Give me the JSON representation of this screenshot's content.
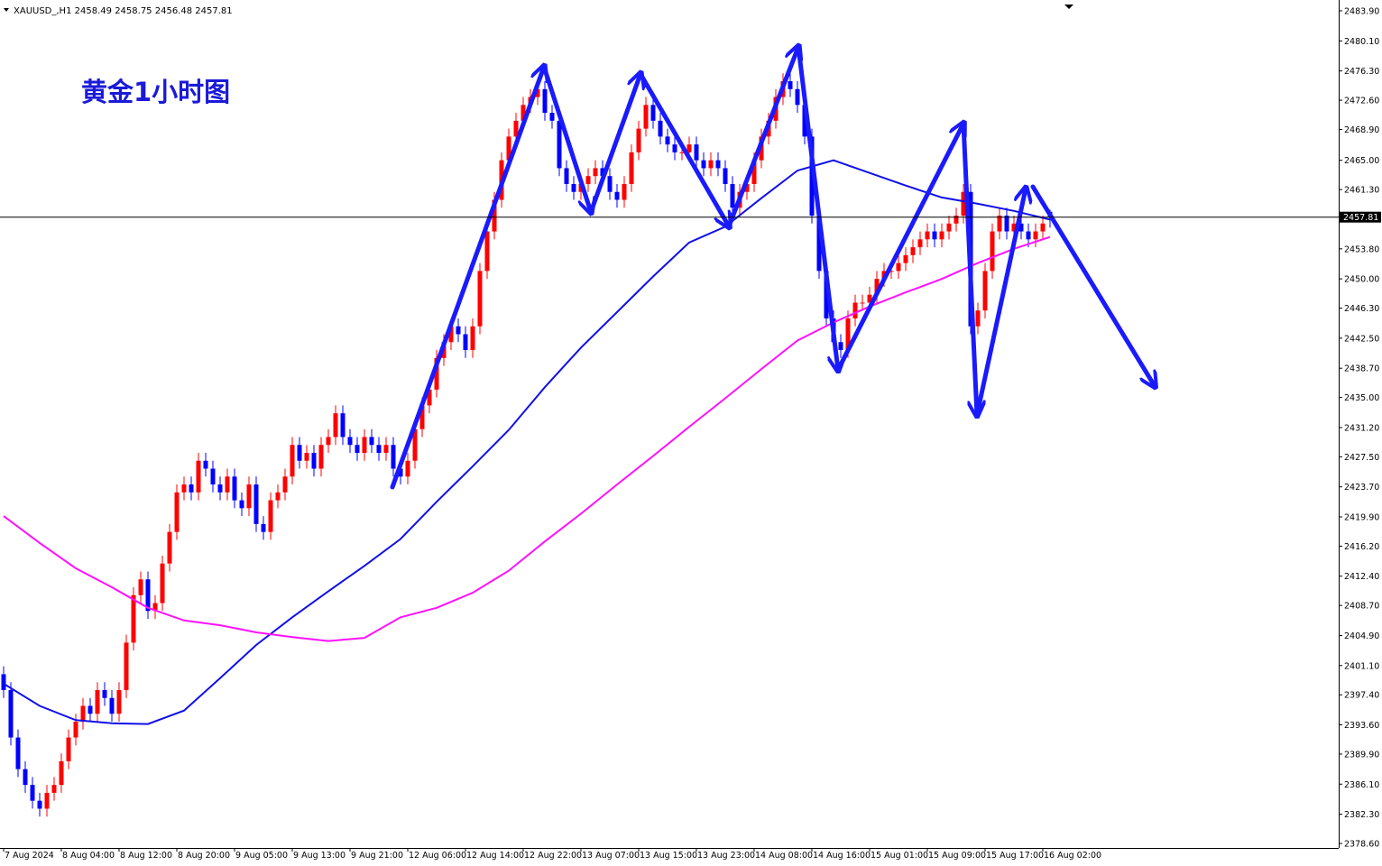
{
  "chart_data": {
    "type": "candlestick",
    "symbol": "XAUUSD_,H1",
    "title": "黄金1小时图",
    "up_color": "#ff0000",
    "down_color": "#0000ff",
    "open": [
      2400,
      2398,
      2392,
      2388,
      2386,
      2384,
      2383,
      2385,
      2386,
      2389,
      2392,
      2394,
      2396,
      2395,
      2398,
      2397,
      2395,
      2398,
      2404,
      2410,
      2412,
      2408,
      2409,
      2414,
      2418,
      2423,
      2424,
      2423,
      2427,
      2426,
      2424,
      2423,
      2425,
      2422,
      2421,
      2424,
      2419,
      2418,
      2422,
      2423,
      2425,
      2429,
      2427,
      2428,
      2426,
      2429,
      2430,
      2433,
      2430,
      2429,
      2428,
      2430,
      2429,
      2428,
      2429,
      2426,
      2425,
      2427,
      2431,
      2434,
      2436,
      2440,
      2442,
      2444,
      2443,
      2441,
      2444,
      2451,
      2456,
      2460,
      2465,
      2468,
      2470,
      2472,
      2473,
      2474,
      2471,
      2470,
      2464,
      2462,
      2461,
      2462,
      2463,
      2464,
      2463,
      2461,
      2460,
      2462,
      2466,
      2469,
      2472,
      2470,
      2468,
      2467,
      2466,
      2466,
      2467,
      2465,
      2464,
      2465,
      2464,
      2462,
      2459,
      2461,
      2462,
      2465,
      2468,
      2470,
      2473,
      2475,
      2474,
      2472,
      2468,
      2458,
      2451,
      2445,
      2442,
      2441,
      2445,
      2447,
      2447,
      2448,
      2450,
      2451,
      2451,
      2452,
      2453,
      2454,
      2455,
      2456,
      2455,
      2456,
      2457,
      2458,
      2461,
      2444,
      2446,
      2451,
      2456,
      2458,
      2456,
      2457,
      2456,
      2455,
      2456,
      2458.49
    ],
    "high": [
      2401,
      2399,
      2393,
      2389,
      2387,
      2385,
      2386,
      2387,
      2390,
      2393,
      2395,
      2397,
      2397,
      2399,
      2399,
      2398,
      2399,
      2405,
      2411,
      2413,
      2413,
      2410,
      2415,
      2419,
      2424,
      2425,
      2425,
      2428,
      2428,
      2427,
      2425,
      2426,
      2426,
      2423,
      2425,
      2425,
      2420,
      2423,
      2424,
      2426,
      2430,
      2430,
      2429,
      2429,
      2430,
      2431,
      2434,
      2434,
      2431,
      2430,
      2431,
      2431,
      2430,
      2430,
      2430,
      2427,
      2428,
      2432,
      2435,
      2437,
      2441,
      2443,
      2445,
      2445,
      2444,
      2445,
      2452,
      2457,
      2461,
      2466,
      2469,
      2471,
      2473,
      2474,
      2475,
      2475,
      2472,
      2471,
      2465,
      2463,
      2463,
      2464,
      2465,
      2465,
      2464,
      2462,
      2463,
      2467,
      2470,
      2473,
      2473,
      2471,
      2469,
      2468,
      2467,
      2468,
      2468,
      2466,
      2466,
      2466,
      2465,
      2463,
      2462,
      2463,
      2466,
      2469,
      2471,
      2474,
      2476,
      2476,
      2475,
      2473,
      2469,
      2459,
      2452,
      2446,
      2443,
      2446,
      2448,
      2448,
      2449,
      2451,
      2452,
      2452,
      2453,
      2454,
      2455,
      2456,
      2457,
      2457,
      2457,
      2458,
      2459,
      2462,
      2462,
      2447,
      2452,
      2457,
      2459,
      2459,
      2458,
      2458,
      2457,
      2457,
      2458,
      2458.75
    ],
    "low": [
      2397,
      2391,
      2387,
      2385,
      2383,
      2382,
      2382,
      2384,
      2385,
      2388,
      2391,
      2393,
      2394,
      2394,
      2396,
      2394,
      2394,
      2397,
      2403,
      2409,
      2407,
      2407,
      2408,
      2413,
      2417,
      2422,
      2422,
      2422,
      2425,
      2423,
      2422,
      2422,
      2421,
      2420,
      2420,
      2418,
      2417,
      2417,
      2421,
      2422,
      2424,
      2426,
      2426,
      2425,
      2425,
      2428,
      2429,
      2429,
      2428,
      2427,
      2427,
      2428,
      2427,
      2427,
      2425,
      2424,
      2424,
      2426,
      2430,
      2433,
      2435,
      2439,
      2441,
      2442,
      2440,
      2440,
      2443,
      2450,
      2455,
      2459,
      2464,
      2467,
      2469,
      2471,
      2472,
      2470,
      2469,
      2463,
      2461,
      2460,
      2460,
      2461,
      2462,
      2462,
      2460,
      2459,
      2459,
      2461,
      2465,
      2468,
      2469,
      2467,
      2466,
      2465,
      2465,
      2465,
      2464,
      2463,
      2463,
      2463,
      2461,
      2458,
      2458,
      2460,
      2461,
      2464,
      2467,
      2469,
      2472,
      2473,
      2471,
      2467,
      2457,
      2450,
      2444,
      2441,
      2440,
      2440,
      2444,
      2446,
      2446,
      2447,
      2449,
      2450,
      2450,
      2451,
      2452,
      2453,
      2454,
      2454,
      2454,
      2455,
      2456,
      2457,
      2443,
      2443,
      2445,
      2450,
      2455,
      2455,
      2455,
      2455,
      2454,
      2454,
      2455,
      2456.48
    ],
    "close": [
      2398,
      2392,
      2388,
      2386,
      2384,
      2383,
      2385,
      2386,
      2389,
      2392,
      2394,
      2396,
      2395,
      2398,
      2397,
      2395,
      2398,
      2404,
      2410,
      2412,
      2408,
      2409,
      2414,
      2418,
      2423,
      2424,
      2423,
      2427,
      2426,
      2424,
      2423,
      2425,
      2422,
      2421,
      2424,
      2419,
      2418,
      2422,
      2423,
      2425,
      2429,
      2427,
      2428,
      2426,
      2429,
      2430,
      2433,
      2430,
      2429,
      2428,
      2430,
      2429,
      2428,
      2429,
      2426,
      2425,
      2427,
      2431,
      2434,
      2436,
      2440,
      2442,
      2444,
      2443,
      2441,
      2444,
      2451,
      2456,
      2460,
      2465,
      2468,
      2470,
      2472,
      2473,
      2474,
      2471,
      2470,
      2464,
      2462,
      2461,
      2462,
      2463,
      2464,
      2463,
      2461,
      2460,
      2462,
      2466,
      2469,
      2472,
      2470,
      2468,
      2467,
      2466,
      2466,
      2467,
      2465,
      2464,
      2465,
      2464,
      2462,
      2459,
      2461,
      2462,
      2465,
      2468,
      2470,
      2473,
      2475,
      2474,
      2472,
      2468,
      2458,
      2451,
      2445,
      2442,
      2441,
      2445,
      2447,
      2447,
      2448,
      2450,
      2451,
      2451,
      2452,
      2453,
      2454,
      2455,
      2456,
      2455,
      2456,
      2457,
      2458,
      2461,
      2444,
      2446,
      2451,
      2456,
      2458,
      2456,
      2457,
      2456,
      2455,
      2456,
      2457,
      2457.81
    ],
    "lines": [
      {
        "color": "#1010e8",
        "x": [
          0,
          5,
          10,
          15,
          20,
          25,
          30,
          35,
          40,
          45,
          50,
          55,
          60,
          65,
          70,
          75,
          80,
          85,
          90,
          95,
          100,
          105,
          110,
          115,
          120,
          125,
          130,
          135,
          140,
          145
        ],
        "values": [
          2398.8,
          2396.0,
          2394.2,
          2393.8,
          2393.7,
          2395.4,
          2399.5,
          2403.7,
          2407.2,
          2410.5,
          2413.7,
          2417.1,
          2421.8,
          2426.3,
          2430.9,
          2436.3,
          2441.3,
          2445.8,
          2450.3,
          2454.6,
          2456.6,
          2460.2,
          2463.7,
          2465.0,
          2463.4,
          2461.8,
          2460.3,
          2459.5,
          2458.6,
          2457.5
        ]
      },
      {
        "color": "#ff10ff",
        "x": [
          0,
          5,
          10,
          15,
          20,
          25,
          30,
          35,
          40,
          45,
          50,
          55,
          60,
          65,
          70,
          75,
          80,
          85,
          90,
          95,
          100,
          105,
          110,
          115,
          120,
          125,
          130,
          135,
          140,
          145
        ],
        "values": [
          2420.0,
          2416.6,
          2413.4,
          2411.0,
          2408.4,
          2406.8,
          2406.2,
          2405.3,
          2404.7,
          2404.2,
          2404.6,
          2407.2,
          2408.4,
          2410.3,
          2413.1,
          2416.8,
          2420.3,
          2424.0,
          2427.6,
          2431.3,
          2434.9,
          2438.6,
          2442.2,
          2444.5,
          2446.5,
          2448.3,
          2450.0,
          2452.0,
          2453.8,
          2455.3
        ]
      }
    ],
    "xlim": [
      -0.5,
      185
    ],
    "xticks": [
      {
        "value": 0,
        "label": "7 Aug 2024"
      },
      {
        "value": 8,
        "label": "8 Aug 04:00"
      },
      {
        "value": 16,
        "label": "8 Aug 12:00"
      },
      {
        "value": 24,
        "label": "8 Aug 20:00"
      },
      {
        "value": 32,
        "label": "9 Aug 05:00"
      },
      {
        "value": 40,
        "label": "9 Aug 13:00"
      },
      {
        "value": 48,
        "label": "9 Aug 21:00"
      },
      {
        "value": 56,
        "label": "12 Aug 06:00"
      },
      {
        "value": 64,
        "label": "12 Aug 14:00"
      },
      {
        "value": 72,
        "label": "12 Aug 22:00"
      },
      {
        "value": 80,
        "label": "13 Aug 07:00"
      },
      {
        "value": 88,
        "label": "13 Aug 15:00"
      },
      {
        "value": 96,
        "label": "13 Aug 23:00"
      },
      {
        "value": 104,
        "label": "14 Aug 08:00"
      },
      {
        "value": 112,
        "label": "14 Aug 16:00"
      },
      {
        "value": 120,
        "label": "15 Aug 01:00"
      },
      {
        "value": 128,
        "label": "15 Aug 09:00"
      },
      {
        "value": 136,
        "label": "15 Aug 17:00"
      },
      {
        "value": 144,
        "label": "16 Aug 02:00"
      }
    ],
    "ylim": [
      2378.03,
      2485.27
    ],
    "yticks": [
      {
        "value": 2483.9,
        "label": "2483.90"
      },
      {
        "value": 2480.1,
        "label": "2480.10"
      },
      {
        "value": 2476.3,
        "label": "2476.30"
      },
      {
        "value": 2472.6,
        "label": "2472.60"
      },
      {
        "value": 2468.9,
        "label": "2468.90"
      },
      {
        "value": 2465,
        "label": "2465.00"
      },
      {
        "value": 2461.3,
        "label": "2461.30"
      },
      {
        "value": 2453.8,
        "label": "2453.80"
      },
      {
        "value": 2450,
        "label": "2450.00"
      },
      {
        "value": 2446.3,
        "label": "2446.30"
      },
      {
        "value": 2442.5,
        "label": "2442.50"
      },
      {
        "value": 2438.7,
        "label": "2438.70"
      },
      {
        "value": 2435,
        "label": "2435.00"
      },
      {
        "value": 2431.2,
        "label": "2431.20"
      },
      {
        "value": 2427.5,
        "label": "2427.50"
      },
      {
        "value": 2423.7,
        "label": "2423.70"
      },
      {
        "value": 2419.9,
        "label": "2419.90"
      },
      {
        "value": 2416.2,
        "label": "2416.20"
      },
      {
        "value": 2412.4,
        "label": "2412.40"
      },
      {
        "value": 2408.7,
        "label": "2408.70"
      },
      {
        "value": 2404.9,
        "label": "2404.90"
      },
      {
        "value": 2401.1,
        "label": "2401.10"
      },
      {
        "value": 2397.4,
        "label": "2397.40"
      },
      {
        "value": 2393.6,
        "label": "2393.60"
      },
      {
        "value": 2389.9,
        "label": "2389.90"
      },
      {
        "value": 2386.1,
        "label": "2386.10"
      },
      {
        "value": 2382.3,
        "label": "2382.30"
      },
      {
        "value": 2378.6,
        "label": "2378.60"
      }
    ]
  }
}
